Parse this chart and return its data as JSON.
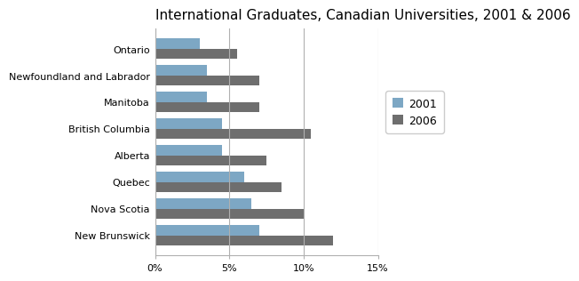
{
  "title": "International Graduates, Canadian Universities, 2001 & 2006",
  "provinces": [
    "New Brunswick",
    "Nova Scotia",
    "Quebec",
    "Alberta",
    "British Columbia",
    "Manitoba",
    "Newfoundland and Labrador",
    "Ontario"
  ],
  "values_2001": [
    7.0,
    6.5,
    6.0,
    4.5,
    4.5,
    3.5,
    3.5,
    3.0
  ],
  "values_2006": [
    12.0,
    10.0,
    8.5,
    7.5,
    10.5,
    7.0,
    7.0,
    5.5
  ],
  "color_2001": "#7DA7C4",
  "color_2006": "#6E6E6E",
  "xlim": [
    0,
    15
  ],
  "xticks": [
    0,
    5,
    10,
    15
  ],
  "xticklabels": [
    "0%",
    "5%",
    "10%",
    "15%"
  ],
  "legend_labels": [
    "2001",
    "2006"
  ],
  "bar_height": 0.38,
  "background_color": "#ffffff",
  "grid_color": "#b0b0b0",
  "title_fontsize": 11,
  "tick_fontsize": 8,
  "legend_fontsize": 9
}
